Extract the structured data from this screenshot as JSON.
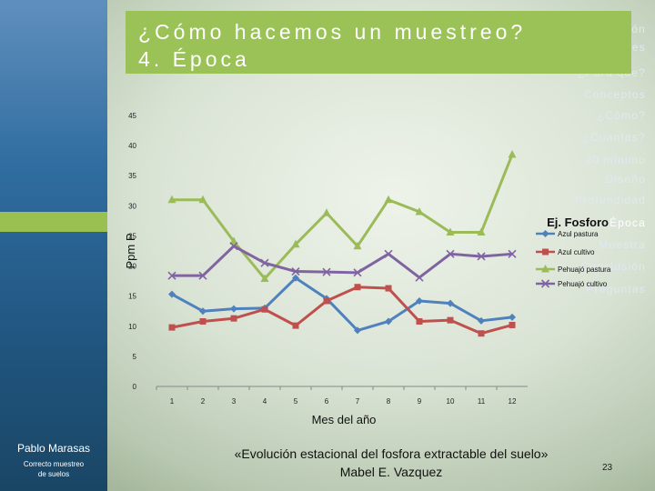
{
  "sidebar": {
    "items": [
      {
        "label": "Introducción",
        "active": false
      },
      {
        "label": "Dificultades",
        "active": false
      },
      {
        "label": "¿Para que?",
        "active": false
      },
      {
        "label": "Conceptos",
        "active": false
      },
      {
        "label": "¿Cómo?",
        "active": false
      },
      {
        "label": "¿Cuantas?",
        "active": false
      },
      {
        "label": "20 mínimo",
        "active": false
      },
      {
        "label": "Diseño",
        "active": false
      },
      {
        "label": "Profundidad",
        "active": false
      },
      {
        "label": "Época",
        "active": true
      },
      {
        "label": "Muestra",
        "active": false
      },
      {
        "label": "Conclusión",
        "active": false
      },
      {
        "label": "Preguntas",
        "active": false
      }
    ],
    "presenter": "Pablo Marasas",
    "presenter_subtitle": "Correcto muestreo\nde suelos"
  },
  "header": {
    "title": "¿Cómo hacemos un muestreo?\n4. Época"
  },
  "caption": "«Evolución estacional del fosfora extractable del suelo»\nMabel E. Vazquez",
  "page_number": "23",
  "colors": {
    "sidebar": "#2f6c9f",
    "accent": "#9ac256"
  },
  "chart_data": {
    "type": "line",
    "title": "Ej. Fosforo",
    "xlabel": "Mes del año",
    "ylabel": "Ppm P",
    "ylim": [
      0,
      45
    ],
    "yticks": [
      0,
      5,
      10,
      15,
      20,
      25,
      30,
      35,
      40,
      45
    ],
    "categories": [
      "1",
      "2",
      "3",
      "4",
      "5",
      "6",
      "7",
      "8",
      "9",
      "10",
      "11",
      "12"
    ],
    "legend_position": "right",
    "series": [
      {
        "name": "Azul pastura",
        "color": "#4f81bd",
        "marker": "diamond",
        "values": [
          15.3,
          12.5,
          12.9,
          13.0,
          18.0,
          14.6,
          9.3,
          10.8,
          14.2,
          13.8,
          10.9,
          11.5
        ]
      },
      {
        "name": "Azul cultivo",
        "color": "#c0504d",
        "marker": "square",
        "values": [
          9.8,
          10.8,
          11.3,
          12.8,
          10.1,
          14.2,
          16.5,
          16.3,
          10.8,
          11.0,
          8.8,
          10.2
        ]
      },
      {
        "name": "Pehuajó pastura",
        "color": "#9bbb59",
        "marker": "triangle",
        "values": [
          31.0,
          31.0,
          24.1,
          17.9,
          23.6,
          28.8,
          23.3,
          31.0,
          29.0,
          25.6,
          25.6,
          38.5
        ]
      },
      {
        "name": "Pehuajó cultivo",
        "color": "#8064a2",
        "marker": "x",
        "values": [
          18.4,
          18.4,
          23.3,
          20.5,
          19.1,
          19.0,
          18.9,
          22.0,
          18.1,
          22.0,
          21.6,
          22.0
        ]
      }
    ]
  }
}
